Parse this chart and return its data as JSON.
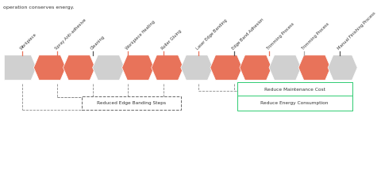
{
  "title_text": "operation conserves energy.",
  "steps": [
    {
      "label": "Workpiece",
      "tick_color": "#E8735A"
    },
    {
      "label": "Spray Anti-adhesive",
      "tick_color": "#E8735A"
    },
    {
      "label": "Cleaning",
      "tick_color": "#555555"
    },
    {
      "label": "Workpiece Heating",
      "tick_color": "#E8735A"
    },
    {
      "label": "Roller Gluing",
      "tick_color": "#E8735A"
    },
    {
      "label": "Laser Edge Banding",
      "tick_color": "#E8735A"
    },
    {
      "label": "Edge Band Adhesion",
      "tick_color": "#555555"
    },
    {
      "label": "Trimming Process",
      "tick_color": "#E8735A"
    },
    {
      "label": "Trimming Process",
      "tick_color": "#aaaaaa"
    },
    {
      "label": "Manual Finishing Process",
      "tick_color": "#555555"
    }
  ],
  "chevron_colors": [
    "#d0d0d0",
    "#E8735A",
    "#E8735A",
    "#d0d0d0",
    "#E8735A",
    "#E8735A",
    "#d0d0d0",
    "#E8735A",
    "#E8735A",
    "#d0d0d0",
    "#E8735A",
    "#d0d0d0"
  ],
  "salmon": "#E8735A",
  "gray": "#d0d0d0",
  "green": "#2ECC71",
  "dash_color": "#888888",
  "label_box1": "Reduced Edge Banding Steps",
  "label_box2": "Reduce Maintenance Cost",
  "label_box3": "Reduce Energy Consumption",
  "bg_color": "#ffffff"
}
